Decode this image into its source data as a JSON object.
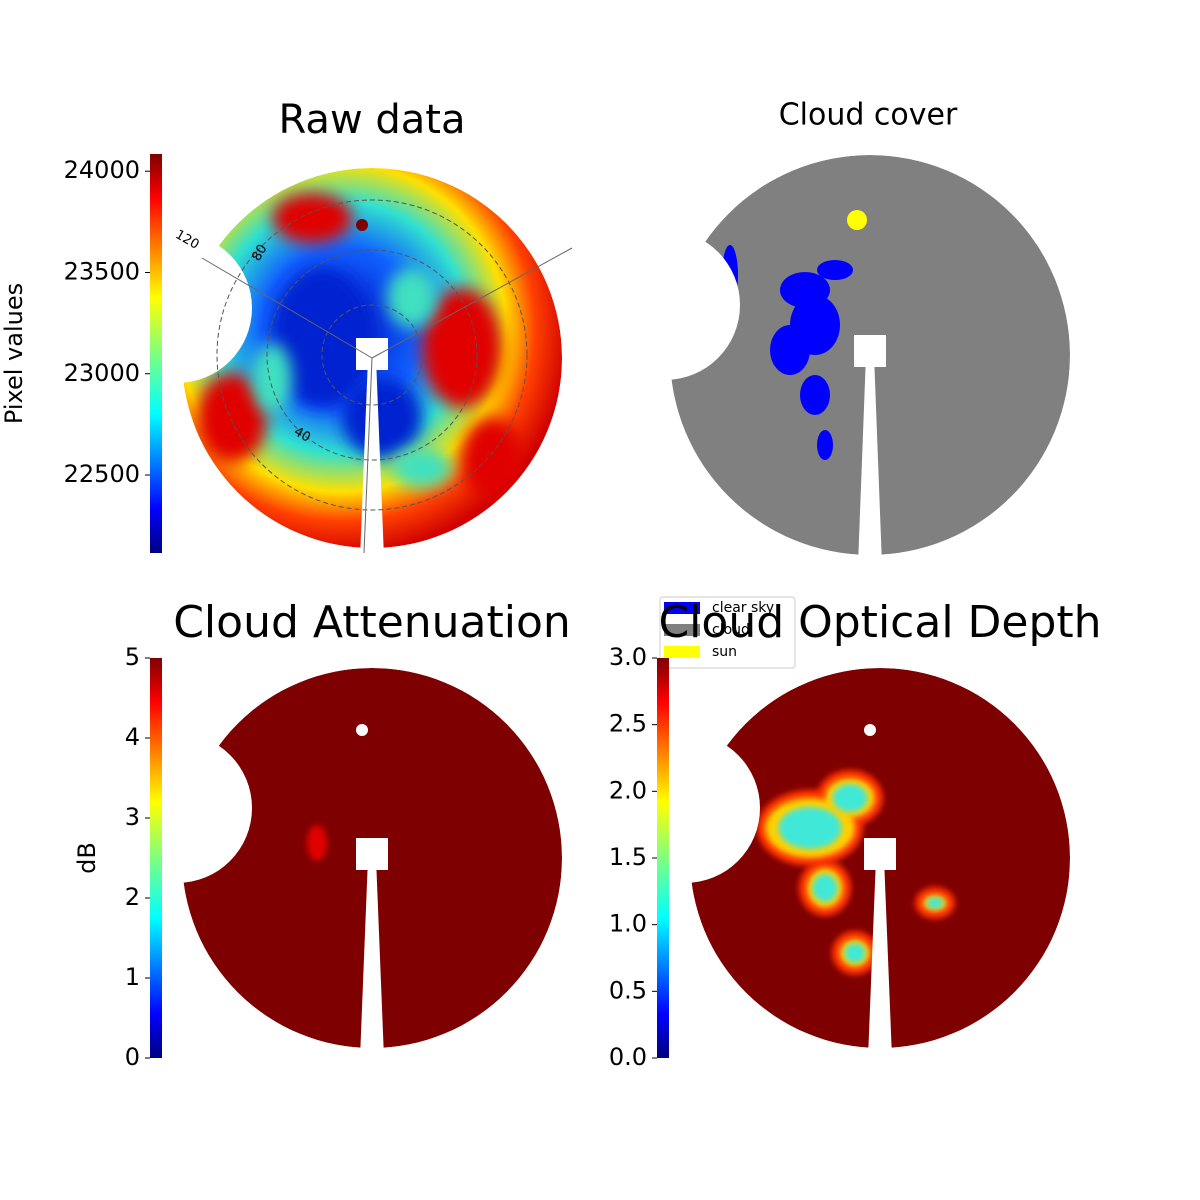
{
  "chart_data": [
    {
      "type": "image",
      "title": "Raw data",
      "colormap": "jet",
      "colorbar_label": "Pixel values",
      "clim": [
        22115,
        24085
      ],
      "cticks": [
        22500,
        23000,
        23500,
        24000
      ],
      "polar_labels": [
        "120",
        "80",
        "40"
      ]
    },
    {
      "type": "image",
      "title": "Cloud cover",
      "series": [
        {
          "name": "clear sky",
          "color": "#0000ff"
        },
        {
          "name": "cloud",
          "color": "#808080"
        },
        {
          "name": "sun",
          "color": "#ffff00"
        }
      ]
    },
    {
      "type": "image",
      "title": "Cloud Attenuation",
      "colormap": "jet",
      "colorbar_label": "dB",
      "clim": [
        0,
        5
      ],
      "cticks": [
        0,
        1,
        2,
        3,
        4,
        5
      ]
    },
    {
      "type": "image",
      "title": "Cloud Optical Depth",
      "colormap": "jet",
      "clim": [
        0,
        3
      ],
      "cticks": [
        {
          "value": 0,
          "label": "0.0"
        },
        {
          "value": 0.5,
          "label": "0.5"
        },
        {
          "value": 1,
          "label": "1.0"
        },
        {
          "value": 1.5,
          "label": "1.5"
        },
        {
          "value": 2,
          "label": "2.0"
        },
        {
          "value": 2.5,
          "label": "2.5"
        },
        {
          "value": 3,
          "label": "3.0"
        }
      ]
    }
  ]
}
